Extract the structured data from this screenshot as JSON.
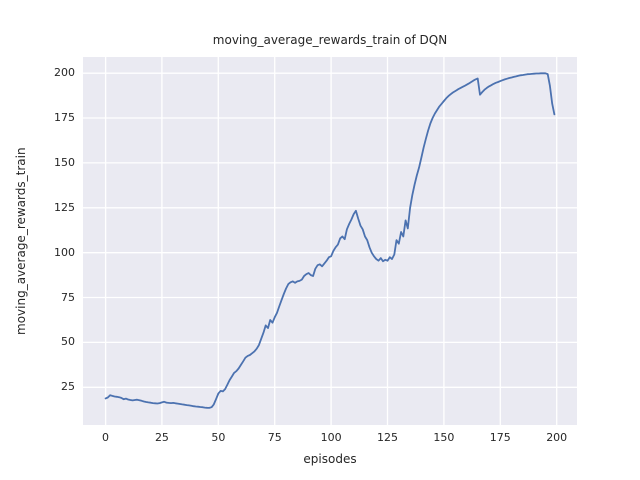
{
  "chart_data": {
    "type": "line",
    "title": "moving_average_rewards_train of DQN",
    "xlabel": "episodes",
    "ylabel": "moving_average_rewards_train",
    "x_ticks": [
      0,
      25,
      50,
      75,
      100,
      125,
      150,
      175,
      200
    ],
    "y_ticks": [
      25,
      50,
      75,
      100,
      125,
      150,
      175,
      200
    ],
    "xlim": [
      -10,
      209
    ],
    "ylim": [
      4,
      209
    ],
    "grid": true,
    "legend": "none",
    "style": {
      "axes_background": "#eaeaf2",
      "grid_color": "#ffffff",
      "line_color": "#4c72b0",
      "text_color": "#262626",
      "figure_background": "#ffffff"
    },
    "series": [
      {
        "name": "moving_average_rewards_train",
        "x_start": 0,
        "x_step": 1,
        "y": [
          18.8,
          19.3,
          20.6,
          20.2,
          19.9,
          19.7,
          19.5,
          19.1,
          18.4,
          18.7,
          18.2,
          17.9,
          17.7,
          17.9,
          18.1,
          17.8,
          17.5,
          17.1,
          16.8,
          16.6,
          16.4,
          16.2,
          16.1,
          16.0,
          16.2,
          16.6,
          16.9,
          16.5,
          16.3,
          16.2,
          16.3,
          16.1,
          15.9,
          15.7,
          15.5,
          15.3,
          15.1,
          14.9,
          14.7,
          14.5,
          14.3,
          14.2,
          14.0,
          13.9,
          13.7,
          13.6,
          13.5,
          13.9,
          15.5,
          18.5,
          21.5,
          23.0,
          22.7,
          24.0,
          26.5,
          29.0,
          31.0,
          33.0,
          34.0,
          35.5,
          37.5,
          39.5,
          41.5,
          42.5,
          43.0,
          44.0,
          45.0,
          46.5,
          48.5,
          52.0,
          55.5,
          59.5,
          58.0,
          62.5,
          61.0,
          64.0,
          66.5,
          70.0,
          73.5,
          77.0,
          80.0,
          82.5,
          83.5,
          84.0,
          83.2,
          84.0,
          84.3,
          85.0,
          87.0,
          88.0,
          88.7,
          87.5,
          87.0,
          91.0,
          93.0,
          93.5,
          92.4,
          94.0,
          95.5,
          97.5,
          98.0,
          101.0,
          103.0,
          104.5,
          108.0,
          109.0,
          107.5,
          113.0,
          116.0,
          118.5,
          121.5,
          123.3,
          119.0,
          115.0,
          113.0,
          109.0,
          107.0,
          103.0,
          100.0,
          98.0,
          96.5,
          95.5,
          97.0,
          95.2,
          96.0,
          95.5,
          97.5,
          96.5,
          99.0,
          107.0,
          105.0,
          111.5,
          109.0,
          118.0,
          113.5,
          125.0,
          132.0,
          138.0,
          143.0,
          147.5,
          153.0,
          158.5,
          163.5,
          168.0,
          172.0,
          175.0,
          177.5,
          179.5,
          181.5,
          183.0,
          184.5,
          186.0,
          187.2,
          188.3,
          189.2,
          190.0,
          190.8,
          191.5,
          192.2,
          192.8,
          193.5,
          194.2,
          195.0,
          195.8,
          196.5,
          197.0,
          188.0,
          189.5,
          190.8,
          191.8,
          192.6,
          193.3,
          194.0,
          194.6,
          195.1,
          195.6,
          196.1,
          196.5,
          196.9,
          197.3,
          197.6,
          197.9,
          198.2,
          198.5,
          198.8,
          199.0,
          199.2,
          199.4,
          199.5,
          199.6,
          199.7,
          199.8,
          199.8,
          199.9,
          199.9,
          199.9,
          199.5,
          193.0,
          183.0,
          177.0
        ]
      }
    ]
  }
}
